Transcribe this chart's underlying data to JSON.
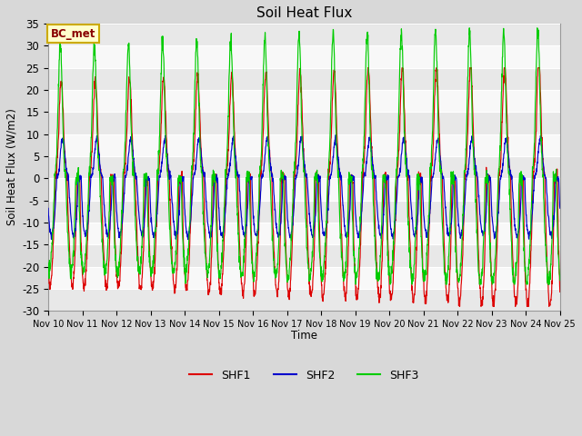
{
  "title": "Soil Heat Flux",
  "ylabel": "Soil Heat Flux (W/m2)",
  "xlabel": "Time",
  "ylim": [
    -30,
    35
  ],
  "fig_bg_color": "#d8d8d8",
  "plot_bg_color": "#ffffff",
  "legend_label": "BC_met",
  "legend_box_facecolor": "#ffffcc",
  "legend_box_edgecolor": "#ccaa00",
  "legend_text_color": "#880000",
  "series": [
    "SHF1",
    "SHF2",
    "SHF3"
  ],
  "colors": [
    "#dd0000",
    "#0000cc",
    "#00cc00"
  ],
  "xtick_labels": [
    "Nov 10",
    "Nov 11",
    "Nov 12",
    "Nov 13",
    "Nov 14",
    "Nov 15",
    "Nov 16",
    "Nov 17",
    "Nov 18",
    "Nov 19",
    "Nov 20",
    "Nov 21",
    "Nov 22",
    "Nov 23",
    "Nov 24",
    "Nov 25"
  ],
  "ytick_labels": [
    -30,
    -25,
    -20,
    -15,
    -10,
    -5,
    0,
    5,
    10,
    15,
    20,
    25,
    30,
    35
  ],
  "num_days": 15,
  "points_per_day": 144,
  "band_colors": [
    "#e8e8e8",
    "#f8f8f8"
  ],
  "band_yticks": [
    -30,
    -25,
    -20,
    -15,
    -10,
    -5,
    0,
    5,
    10,
    15,
    20,
    25,
    30,
    35
  ]
}
